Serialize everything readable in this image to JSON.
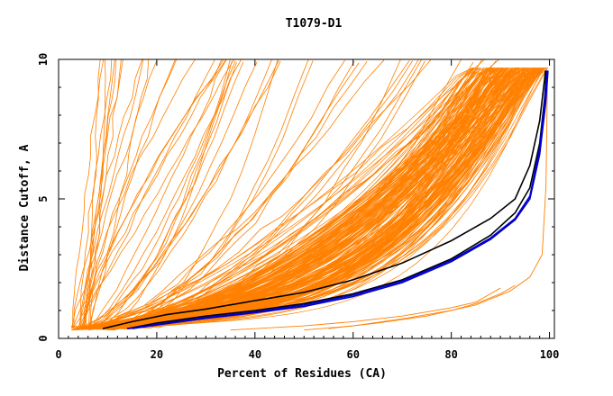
{
  "chart_data": {
    "type": "line",
    "title": "T1079-D1",
    "xlabel": "Percent of Residues (CA)",
    "ylabel": "Distance Cutoff, A",
    "xlim": [
      0,
      101
    ],
    "ylim": [
      0,
      10
    ],
    "x_ticks": [
      0,
      20,
      40,
      60,
      80,
      100
    ],
    "y_ticks": [
      0,
      5,
      10
    ],
    "grid": false,
    "legend": "none",
    "colors": {
      "models": "#ff8000",
      "highlight_blue": "#0000cc",
      "highlight_black": "#000000"
    },
    "series": [
      {
        "color": "#0000cc",
        "x": [
          14,
          20,
          30,
          40,
          50,
          60,
          70,
          80,
          88,
          93,
          96,
          98,
          99,
          99.5
        ],
        "y": [
          0.35,
          0.5,
          0.75,
          0.95,
          1.2,
          1.55,
          2.05,
          2.8,
          3.6,
          4.3,
          5.1,
          6.8,
          8.5,
          9.6
        ]
      },
      {
        "color": "#0000cc",
        "x": [
          15,
          20,
          30,
          40,
          50,
          60,
          70,
          80,
          88,
          93,
          96,
          98,
          99.2,
          99.7
        ],
        "y": [
          0.35,
          0.48,
          0.72,
          0.92,
          1.15,
          1.5,
          2.0,
          2.75,
          3.55,
          4.25,
          5.0,
          6.6,
          8.4,
          9.6
        ]
      },
      {
        "color": "#000000",
        "x": [
          9,
          15,
          22,
          30,
          40,
          50,
          60,
          70,
          80,
          88,
          93,
          96,
          98,
          99.2
        ],
        "y": [
          0.35,
          0.6,
          0.85,
          1.05,
          1.35,
          1.65,
          2.1,
          2.7,
          3.5,
          4.3,
          5.0,
          6.2,
          7.8,
          9.6
        ]
      },
      {
        "color": "#000000",
        "x": [
          14,
          20,
          30,
          40,
          50,
          60,
          70,
          80,
          88,
          93,
          96,
          98,
          99,
          99.4
        ],
        "y": [
          0.35,
          0.55,
          0.8,
          1.0,
          1.25,
          1.6,
          2.1,
          2.85,
          3.7,
          4.5,
          5.4,
          7.0,
          8.6,
          9.6
        ]
      },
      {
        "color": "#ff8000",
        "x": [
          35,
          50,
          60,
          70,
          80,
          85,
          88,
          90
        ],
        "y": [
          0.3,
          0.45,
          0.6,
          0.8,
          1.1,
          1.3,
          1.6,
          1.8
        ]
      },
      {
        "color": "#ff8000",
        "x": [
          50,
          60,
          70,
          80,
          85,
          90,
          93
        ],
        "y": [
          0.3,
          0.45,
          0.7,
          1.0,
          1.25,
          1.6,
          1.9
        ]
      },
      {
        "color": "#ff8000",
        "x": [
          55,
          65,
          75,
          85,
          92,
          96,
          98.5,
          99.3,
          99.6
        ],
        "y": [
          0.35,
          0.55,
          0.8,
          1.2,
          1.7,
          2.2,
          3.0,
          5.5,
          9.6
        ]
      }
    ],
    "bundle": {
      "note_series_generated": "orange model curves",
      "fast_count": 22,
      "mid_count": 30,
      "main_count": 210
    }
  }
}
